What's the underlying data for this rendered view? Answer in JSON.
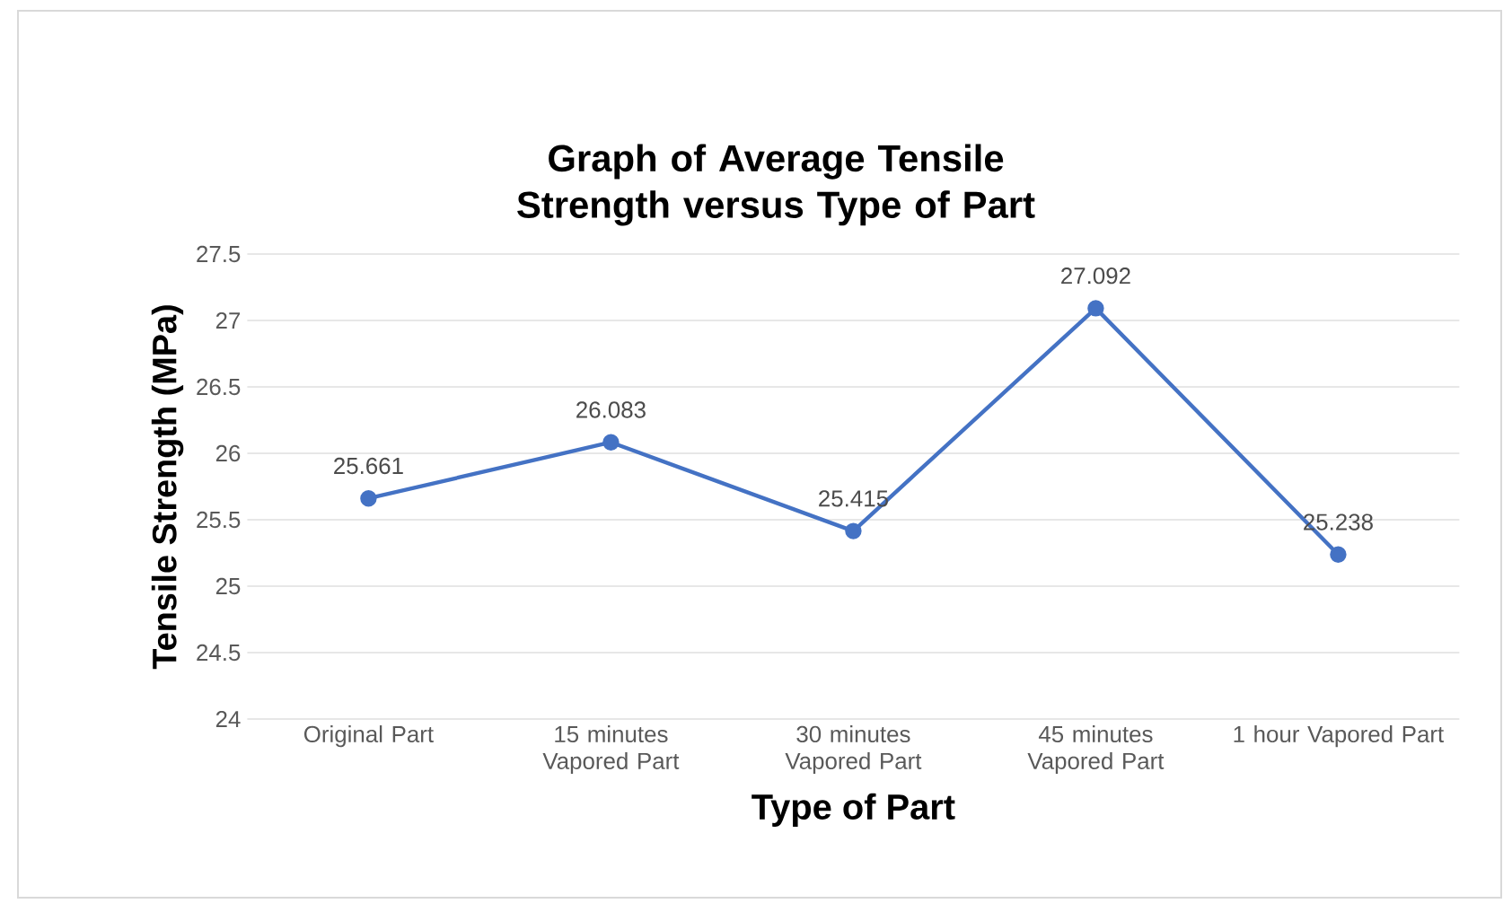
{
  "chart_data": {
    "type": "line",
    "title": "Graph of Average Tensile Strength versus Type of Part",
    "xlabel": "Type of Part",
    "ylabel": "Tensile Strength (MPa)",
    "categories": [
      "Original Part",
      "15 minutes Vapored Part",
      "30 minutes Vapored Part",
      "45 minutes Vapored Part",
      "1 hour Vapored Part"
    ],
    "series": [
      {
        "color": "#4472c4",
        "values": [
          25.661,
          26.083,
          25.415,
          27.092,
          25.238
        ]
      }
    ],
    "ylim": [
      24,
      27.5
    ],
    "yticks": [
      24,
      24.5,
      25,
      25.5,
      26,
      26.5,
      27,
      27.5
    ],
    "grid": "y",
    "data_labels": true,
    "marker": "circle",
    "line_style": "solid"
  }
}
